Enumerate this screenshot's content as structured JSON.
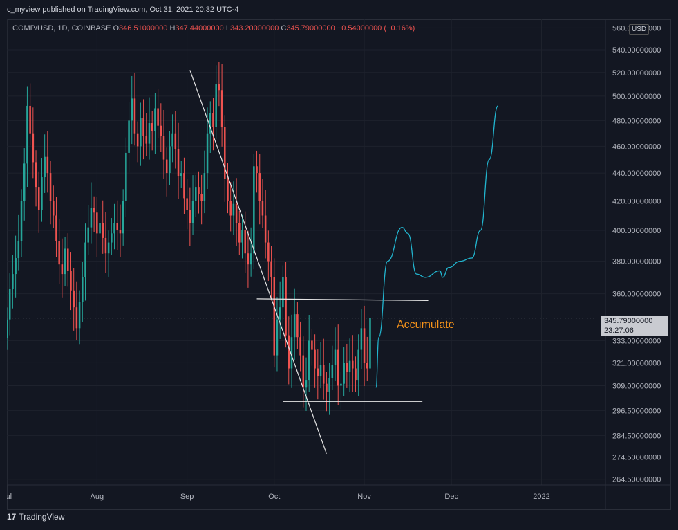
{
  "publisher": "c_myview published on TradingView.com, Oct 31, 2021 20:32 UTC-4",
  "legend": {
    "symbol": "COMP/USD, 1D, COINBASE",
    "open_label": "O",
    "open": "346.51000000",
    "high_label": "H",
    "high": "347.44000000",
    "low_label": "L",
    "low": "343.20000000",
    "close_label": "C",
    "close": "345.79000000",
    "change": "−0.54000000 (−0.16%)"
  },
  "currency": "USD",
  "price_tag": {
    "price": "345.79000000",
    "countdown": "23:27:06"
  },
  "annotation": "Accumulate",
  "brand": "TradingView",
  "colors": {
    "up": "#26a69a",
    "down": "#ef5350",
    "projection": "#22b5cf",
    "annotation": "#f7931a",
    "background": "#131722"
  },
  "chart_data": {
    "type": "candlestick",
    "y_scale": "log",
    "ylim": [
      262,
      568
    ],
    "x_ticks": [
      {
        "label": "Jul",
        "day": 0
      },
      {
        "label": "Aug",
        "day": 31
      },
      {
        "label": "Sep",
        "day": 62
      },
      {
        "label": "Oct",
        "day": 92
      },
      {
        "label": "Nov",
        "day": 123
      },
      {
        "label": "Dec",
        "day": 153
      },
      {
        "label": "2022",
        "day": 184
      }
    ],
    "y_ticks": [
      "560.00000000",
      "540.00000000",
      "520.00000000",
      "500.00000000",
      "480.00000000",
      "460.00000000",
      "440.00000000",
      "420.00000000",
      "400.00000000",
      "380.00000000",
      "360.00000000",
      "333.00000000",
      "321.00000000",
      "309.00000000",
      "296.50000000",
      "284.50000000",
      "274.50000000",
      "264.50000000"
    ],
    "x_range": [
      0,
      206
    ],
    "candles_start_day": 0,
    "closes": [
      345,
      363,
      372,
      382,
      393,
      420,
      447,
      492,
      470,
      448,
      430,
      414,
      437,
      452,
      440,
      420,
      410,
      393,
      378,
      372,
      388,
      374,
      362,
      352,
      340,
      355,
      370,
      392,
      402,
      415,
      412,
      398,
      405,
      395,
      385,
      392,
      398,
      405,
      400,
      398,
      420,
      455,
      480,
      498,
      470,
      460,
      482,
      468,
      462,
      478,
      472,
      490,
      476,
      468,
      450,
      440,
      460,
      470,
      458,
      438,
      440,
      422,
      414,
      405,
      420,
      430,
      425,
      420,
      440,
      470,
      486,
      475,
      510,
      505,
      475,
      436,
      420,
      410,
      418,
      405,
      392,
      400,
      385,
      378,
      385,
      445,
      440,
      420,
      410,
      392,
      380,
      370,
      325,
      345,
      352,
      370,
      336,
      318,
      335,
      348,
      335,
      325,
      308,
      312,
      333,
      328,
      318,
      314,
      320,
      310,
      306,
      313,
      320,
      328,
      309,
      310,
      321,
      316,
      322,
      318,
      312,
      328,
      340,
      321,
      318,
      346
    ],
    "projection": [
      [
        127,
        308
      ],
      [
        128,
        335
      ],
      [
        131,
        380
      ],
      [
        136,
        402
      ],
      [
        138,
        398
      ],
      [
        141,
        372
      ],
      [
        144,
        370
      ],
      [
        149,
        374
      ],
      [
        150,
        370
      ],
      [
        152,
        376
      ],
      [
        156,
        380
      ],
      [
        160,
        382
      ],
      [
        163,
        400
      ],
      [
        166,
        450
      ],
      [
        169,
        492
      ]
    ],
    "trendline": [
      [
        63,
        522
      ],
      [
        110,
        276
      ]
    ],
    "resistance": [
      [
        86,
        357
      ],
      [
        145,
        356
      ]
    ],
    "support": [
      [
        95,
        301
      ],
      [
        143,
        301
      ]
    ],
    "last_price": 345.79
  }
}
